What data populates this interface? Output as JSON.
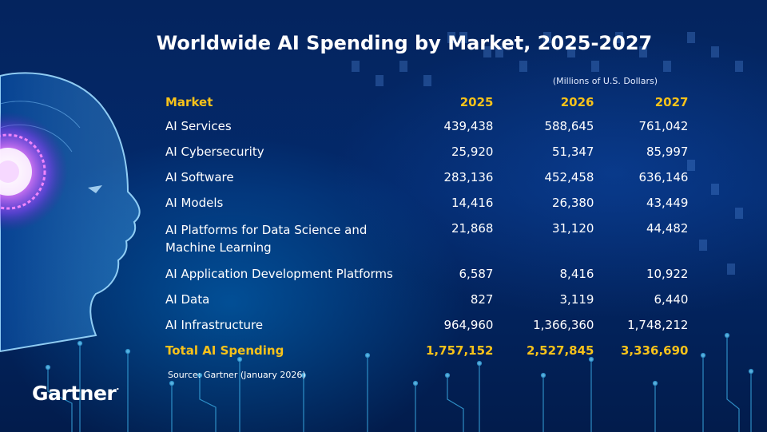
{
  "title": "Worldwide AI Spending by Market, 2025-2027",
  "units": "(Millions of U.S. Dollars)",
  "source": "Source: Gartner (January 2026)",
  "brand": {
    "logo_text": "Gartner",
    "logo_dot": "."
  },
  "colors": {
    "background": "#03296b",
    "accent": "#f7c21a",
    "text": "#ffffff"
  },
  "chart_data": {
    "type": "table",
    "title": "Worldwide AI Spending by Market, 2025-2027",
    "units": "(Millions of U.S. Dollars)",
    "columns": [
      "Market",
      "2025",
      "2026",
      "2027"
    ],
    "rows": [
      {
        "market": "AI Services",
        "values": [
          "439,438",
          "588,645",
          "761,042"
        ]
      },
      {
        "market": "AI Cybersecurity",
        "values": [
          "25,920",
          "51,347",
          "85,997"
        ]
      },
      {
        "market": "AI Software",
        "values": [
          "283,136",
          "452,458",
          "636,146"
        ]
      },
      {
        "market": "AI Models",
        "values": [
          "14,416",
          "26,380",
          "43,449"
        ]
      },
      {
        "market": "AI Platforms for Data Science and Machine Learning",
        "values": [
          "21,868",
          "31,120",
          "44,482"
        ]
      },
      {
        "market": "AI Application Development Platforms",
        "values": [
          "6,587",
          "8,416",
          "10,922"
        ]
      },
      {
        "market": "AI Data",
        "values": [
          "827",
          "3,119",
          "6,440"
        ]
      },
      {
        "market": "AI Infrastructure",
        "values": [
          "964,960",
          "1,366,360",
          "1,748,212"
        ]
      }
    ],
    "total": {
      "market": "Total AI Spending",
      "values": [
        "1,757,152",
        "2,527,845",
        "3,336,690"
      ]
    }
  }
}
